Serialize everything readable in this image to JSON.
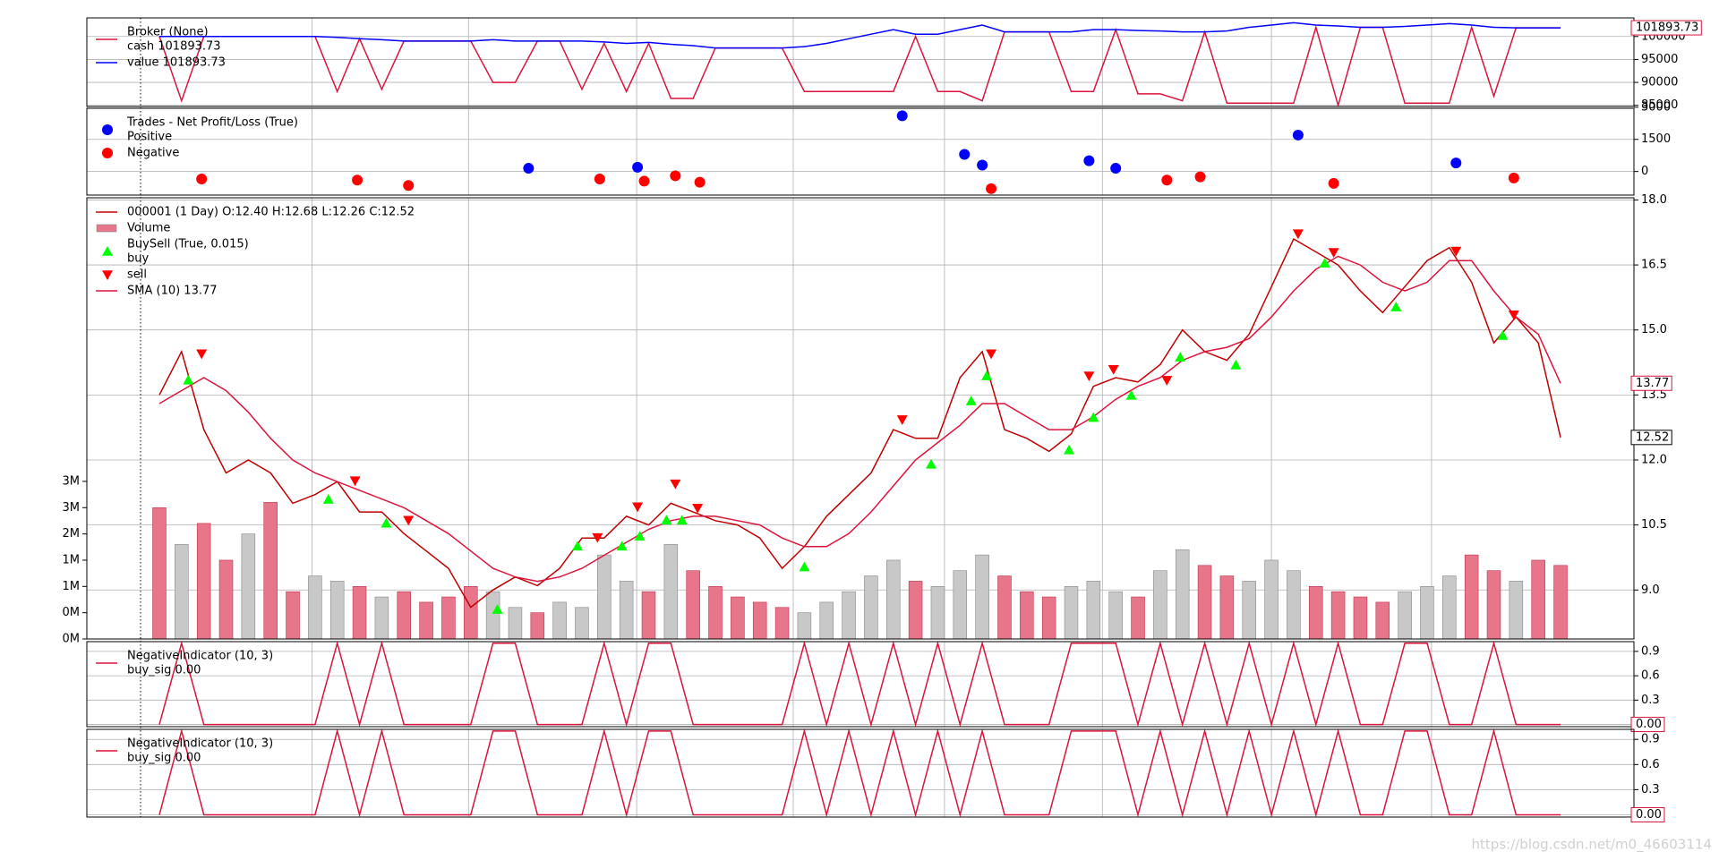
{
  "chart_data": [
    {
      "type": "line",
      "grid": true,
      "ylim": [
        84750,
        104050
      ],
      "yticks": [
        85000,
        90000,
        95000,
        100000
      ],
      "series": [
        {
          "group": "Broker (None)",
          "name": "cash 101893.73",
          "color": "#dc143c",
          "style": "line",
          "tag": true,
          "values": [
            100000,
            86000,
            100000,
            100000,
            100000,
            100000,
            100000,
            100000,
            88000,
            99500,
            88500,
            99000,
            99000,
            99000,
            99000,
            90000,
            90000,
            99000,
            99000,
            88500,
            98500,
            88000,
            98500,
            86500,
            86500,
            97500,
            97500,
            97500,
            97500,
            88000,
            88000,
            88000,
            88000,
            88000,
            100000,
            88000,
            88000,
            86000,
            101000,
            101000,
            101000,
            88000,
            88000,
            101500,
            87500,
            87500,
            86000,
            101000,
            85500,
            85500,
            85500,
            85500,
            102000,
            85000,
            102000,
            102000,
            85500,
            85500,
            85500,
            102000,
            87000,
            101893.73,
            101893.73,
            101893.73
          ]
        },
        {
          "name": "value 101893.73",
          "color": "#0000ff",
          "style": "line",
          "values": [
            100000,
            100000,
            100000,
            100000,
            100000,
            100000,
            100000,
            100000,
            99800,
            99500,
            99300,
            99000,
            99000,
            99000,
            99000,
            99300,
            99000,
            99000,
            99000,
            99000,
            98800,
            98500,
            98700,
            98300,
            98000,
            97500,
            97500,
            97500,
            97500,
            97800,
            98500,
            99500,
            100500,
            101500,
            100500,
            100500,
            101500,
            102500,
            101000,
            101000,
            101000,
            101000,
            101500,
            101500,
            101300,
            101200,
            101000,
            101000,
            101200,
            102000,
            102500,
            103000,
            102500,
            102300,
            102000,
            102000,
            102200,
            102500,
            102800,
            102500,
            102000,
            101893.73,
            101893.73,
            101893.73
          ]
        }
      ]
    },
    {
      "type": "scatter",
      "grid": true,
      "ylim": [
        -1100,
        2950
      ],
      "yticks": [
        0,
        1500,
        3000
      ],
      "series": [
        {
          "group": "Trades - Net Profit/Loss (True)",
          "name": "Positive",
          "color": "#0000ff",
          "style": "marker",
          "marker": "o",
          "x": [
            16.6,
            21.5,
            33.4,
            36.2,
            37.0,
            41.8,
            43.0,
            51.2,
            58.3
          ],
          "values": [
            150,
            200,
            2600,
            800,
            300,
            500,
            150,
            1700,
            400
          ]
        },
        {
          "name": "Negative",
          "color": "#ff0000",
          "style": "marker",
          "marker": "o",
          "x": [
            1.9,
            8.9,
            11.2,
            19.8,
            21.8,
            23.2,
            24.3,
            37.4,
            45.3,
            46.8,
            52.8,
            60.9
          ],
          "values": [
            -350,
            -400,
            -650,
            -350,
            -450,
            -200,
            -500,
            -800,
            -400,
            -250,
            -550,
            -300
          ]
        }
      ]
    },
    {
      "type": "line",
      "grid": true,
      "xlim": [
        -3.26,
        66.3
      ],
      "xticks": [
        6.86,
        13.9,
        21.46,
        28.5,
        35.3,
        42.4,
        50.0,
        57.2
      ],
      "ylim": [
        7.87,
        18.05
      ],
      "yticks": [
        {
          "value": 9,
          "label": "9.0"
        },
        {
          "value": 10.5,
          "label": "10.5"
        },
        {
          "value": 12,
          "label": "12.0"
        },
        {
          "value": 13.5,
          "label": "13.5"
        },
        {
          "value": 15,
          "label": "15.0"
        },
        {
          "value": 16.5,
          "label": "16.5"
        },
        {
          "value": 18,
          "label": "18.0"
        }
      ],
      "y2lim": [
        0,
        8400000
      ],
      "y2ticks": [
        {
          "value": 0,
          "label": "0M"
        },
        {
          "value": 500000,
          "label": "0M"
        },
        {
          "value": 1000000,
          "label": "1M"
        },
        {
          "value": 1500000,
          "label": "1M"
        },
        {
          "value": 2000000,
          "label": "2M"
        },
        {
          "value": 2500000,
          "label": "3M"
        },
        {
          "value": 3000000,
          "label": "3M"
        }
      ],
      "series": [
        {
          "name": "000001 (1 Day) O:12.40 H:12.68 L:12.26 C:12.52",
          "color": "#c00000",
          "style": "line",
          "tag": true,
          "tag_color": "#000000",
          "values": [
            13.5,
            14.5,
            12.7,
            11.7,
            12.0,
            11.7,
            11.0,
            11.2,
            11.5,
            10.8,
            10.8,
            10.3,
            9.9,
            9.5,
            8.6,
            9.0,
            9.3,
            9.1,
            9.5,
            10.2,
            10.2,
            10.7,
            10.5,
            11.0,
            10.8,
            10.6,
            10.5,
            10.2,
            9.5,
            10.0,
            10.7,
            11.2,
            11.7,
            12.7,
            12.5,
            12.5,
            13.9,
            14.5,
            12.7,
            12.5,
            12.2,
            12.6,
            13.7,
            13.9,
            13.8,
            14.2,
            15.0,
            14.5,
            14.3,
            14.9,
            16.0,
            17.1,
            16.8,
            16.5,
            15.9,
            15.4,
            16.0,
            16.6,
            16.9,
            16.1,
            14.7,
            15.3,
            14.7,
            12.52
          ]
        },
        {
          "name": "Volume",
          "color": "#e8768a",
          "up_color": "#c8c8c8",
          "style": "bar",
          "axis": "y2",
          "values": [
            2500000,
            1800000,
            2200000,
            1500000,
            2000000,
            2600000,
            900000,
            1200000,
            1100000,
            1000000,
            800000,
            900000,
            700000,
            800000,
            1000000,
            900000,
            600000,
            500000,
            700000,
            600000,
            1600000,
            1100000,
            900000,
            1800000,
            1300000,
            1000000,
            800000,
            700000,
            600000,
            500000,
            700000,
            900000,
            1200000,
            1500000,
            1100000,
            1000000,
            1300000,
            1600000,
            1200000,
            900000,
            800000,
            1000000,
            1100000,
            900000,
            800000,
            1300000,
            1700000,
            1400000,
            1200000,
            1100000,
            1500000,
            1300000,
            1000000,
            900000,
            800000,
            700000,
            900000,
            1000000,
            1200000,
            1600000,
            1300000,
            1100000,
            1500000,
            1400000
          ]
        },
        {
          "group": "BuySell (True, 0.015)",
          "name": "buy",
          "color": "#00ff00",
          "style": "marker",
          "marker": "^",
          "x": [
            1.3,
            7.6,
            10.2,
            15.2,
            18.8,
            20.8,
            21.6,
            22.8,
            23.5,
            29.0,
            34.7,
            36.5,
            37.2,
            40.9,
            42.0,
            43.7,
            45.9,
            48.4,
            52.4,
            55.6,
            60.4
          ],
          "values": [
            13.84,
            11.09,
            10.54,
            8.55,
            10.01,
            10.01,
            10.24,
            10.61,
            10.61,
            9.53,
            11.9,
            13.36,
            13.94,
            12.23,
            12.98,
            13.49,
            14.37,
            14.19,
            16.54,
            15.53,
            14.87
          ]
        },
        {
          "name": "sell",
          "color": "#ff0000",
          "style": "marker",
          "marker": "v",
          "x": [
            1.9,
            8.8,
            11.2,
            19.7,
            21.5,
            23.2,
            24.2,
            33.4,
            37.4,
            41.8,
            42.9,
            45.3,
            51.2,
            52.8,
            58.3,
            60.9
          ],
          "values": [
            14.45,
            11.52,
            10.61,
            10.21,
            10.92,
            11.45,
            10.89,
            12.93,
            14.45,
            13.94,
            14.09,
            13.84,
            17.22,
            16.79,
            16.82,
            15.35
          ]
        },
        {
          "name": "SMA (10) 13.77",
          "color": "#dc143c",
          "style": "line",
          "tag": true,
          "values": [
            13.3,
            13.6,
            13.9,
            13.6,
            13.1,
            12.5,
            12.0,
            11.7,
            11.5,
            11.3,
            11.1,
            10.9,
            10.6,
            10.3,
            9.9,
            9.5,
            9.3,
            9.2,
            9.3,
            9.5,
            9.8,
            10.1,
            10.4,
            10.6,
            10.7,
            10.7,
            10.6,
            10.5,
            10.2,
            10.0,
            10.0,
            10.3,
            10.8,
            11.4,
            12.0,
            12.4,
            12.8,
            13.3,
            13.3,
            13.0,
            12.7,
            12.7,
            13.0,
            13.4,
            13.7,
            13.9,
            14.3,
            14.5,
            14.6,
            14.8,
            15.3,
            15.9,
            16.4,
            16.7,
            16.5,
            16.1,
            15.9,
            16.1,
            16.6,
            16.6,
            15.9,
            15.3,
            14.9,
            13.77
          ]
        }
      ]
    },
    {
      "type": "line",
      "grid": true,
      "ylim": [
        -0.027,
        1.02
      ],
      "yticks": [
        {
          "value": 0,
          "label": "0.0"
        },
        {
          "value": 0.3,
          "label": "0.3"
        },
        {
          "value": 0.6,
          "label": "0.6"
        },
        {
          "value": 0.9,
          "label": "0.9"
        }
      ],
      "series": [
        {
          "group": "NegativeIndicator (10, 3)",
          "name": "buy_sig 0.00",
          "color": "#dc143c",
          "style": "line",
          "tag": true,
          "tag_label": "0.00",
          "values": [
            0,
            1,
            0,
            0,
            0,
            0,
            0,
            0,
            1,
            0,
            1,
            0,
            0,
            0,
            0,
            1,
            1,
            0,
            0,
            0,
            1,
            0,
            1,
            1,
            0,
            0,
            0,
            0,
            0,
            1,
            0,
            1,
            0,
            1,
            0,
            1,
            0,
            1,
            0,
            0,
            0,
            1,
            1,
            1,
            0,
            1,
            0,
            1,
            0,
            1,
            0,
            1,
            0,
            1,
            0,
            0,
            1,
            1,
            0,
            0,
            1,
            0,
            0,
            0
          ]
        }
      ]
    },
    {
      "type": "line",
      "grid": true,
      "ylim": [
        -0.027,
        1.02
      ],
      "yticks": [
        {
          "value": 0,
          "label": "0.0"
        },
        {
          "value": 0.3,
          "label": "0.3"
        },
        {
          "value": 0.6,
          "label": "0.6"
        },
        {
          "value": 0.9,
          "label": "0.9"
        }
      ],
      "series": [
        {
          "group": "NegativeIndicator (10, 3)",
          "name": "buy_sig 0.00",
          "color": "#dc143c",
          "style": "line",
          "tag": true,
          "tag_label": "0.00",
          "values": [
            0,
            1,
            0,
            0,
            0,
            0,
            0,
            0,
            1,
            0,
            1,
            0,
            0,
            0,
            0,
            1,
            1,
            0,
            0,
            0,
            1,
            0,
            1,
            1,
            0,
            0,
            0,
            0,
            0,
            1,
            0,
            1,
            0,
            1,
            0,
            1,
            0,
            1,
            0,
            0,
            0,
            1,
            1,
            1,
            0,
            1,
            0,
            1,
            0,
            1,
            0,
            1,
            0,
            1,
            0,
            0,
            1,
            1,
            0,
            0,
            1,
            0,
            0,
            0
          ]
        }
      ]
    }
  ],
  "watermark": "https://blog.csdn.net/m0_46603114"
}
